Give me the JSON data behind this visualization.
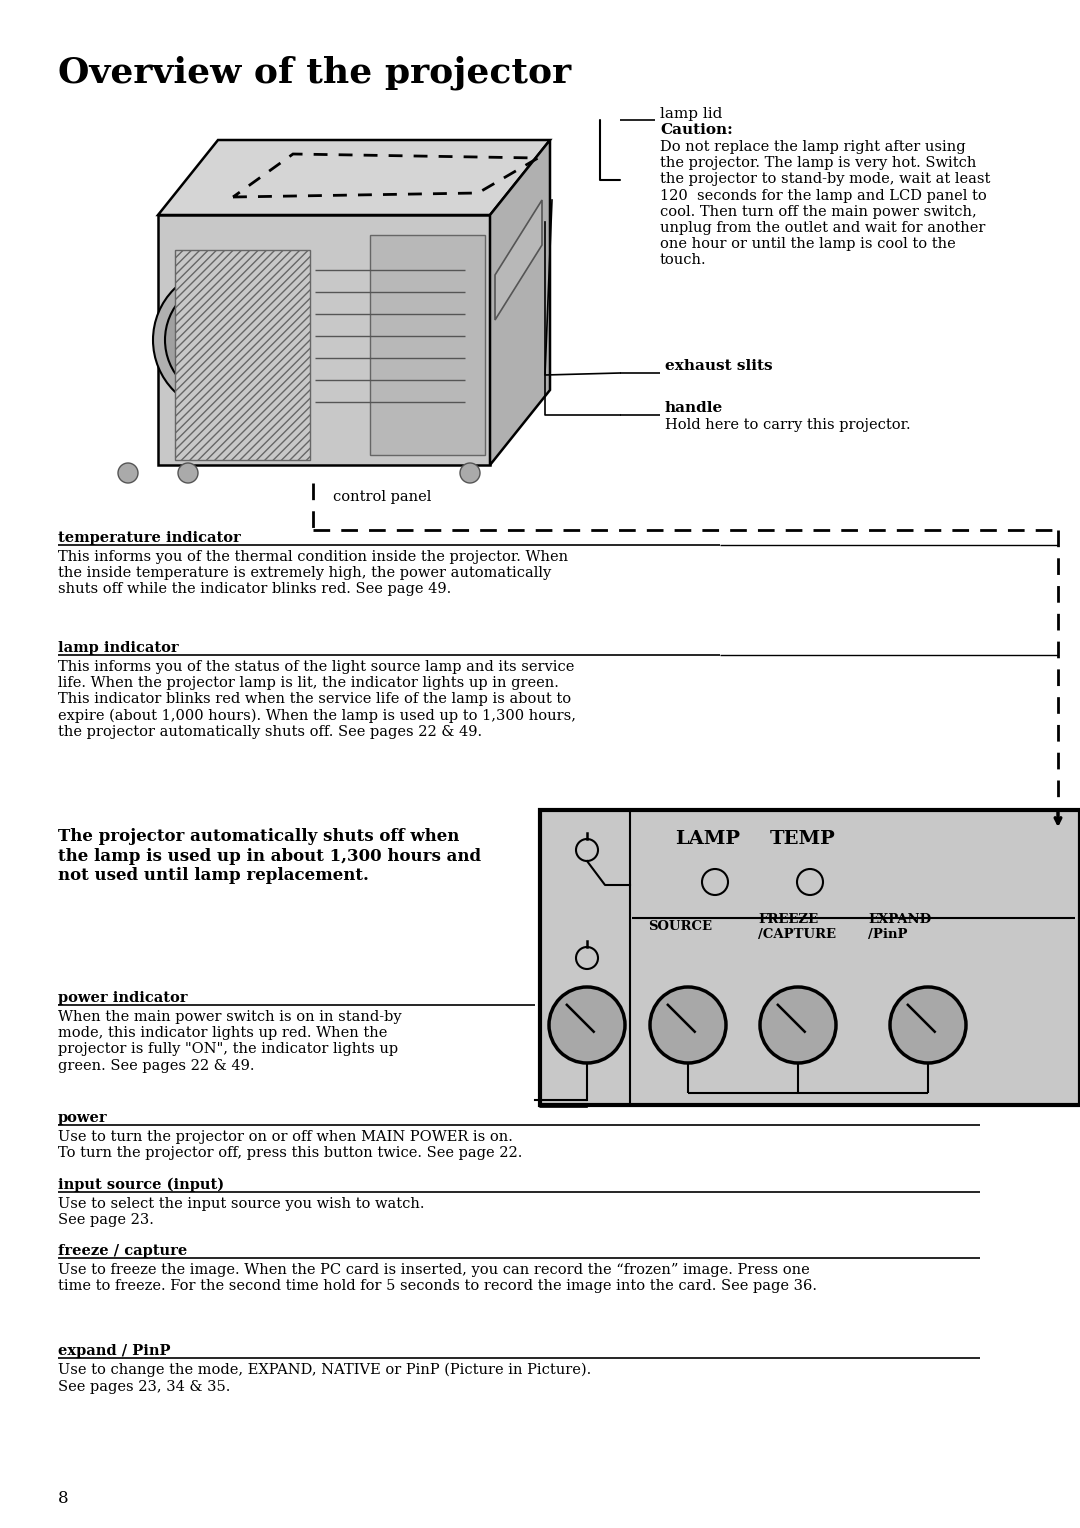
{
  "bg": "#ffffff",
  "fg": "#000000",
  "title": "Overview of the projector",
  "lamp_lid_label": "lamp lid",
  "lamp_lid_caution": "Caution:",
  "lamp_lid_body": "Do not replace the lamp right after using\nthe projector. The lamp is very hot. Switch\nthe projector to stand-by mode, wait at least\n120  seconds for the lamp and LCD panel to\ncool. Then turn off the main power switch,\nunplug from the outlet and wait for another\none hour or until the lamp is cool to the\ntouch.",
  "exhaust_label": "exhaust slits",
  "handle_label": "handle",
  "handle_desc": "Hold here to carry this projector.",
  "ctrl_panel_label": "control panel",
  "temp_title": "temperature indicator",
  "temp_body": "This informs you of the thermal condition inside the projector. When\nthe inside temperature is extremely high, the power automatically\nshuts off while the indicator blinks red. See page 49.",
  "lamp_title": "lamp indicator",
  "lamp_body": "This informs you of the status of the light source lamp and its service\nlife. When the projector lamp is lit, the indicator lights up in green.\nThis indicator blinks red when the service life of the lamp is about to\nexpire (about 1,000 hours). When the lamp is used up to 1,300 hours,\nthe projector automatically shuts off. See pages 22 & 49.",
  "warn_text": "The projector automatically shuts off when\nthe lamp is used up in about 1,300 hours and\nnot used until lamp replacement.",
  "pwr_ind_title": "power indicator",
  "pwr_ind_body": "When the main power switch is on in stand-by\nmode, this indicator lights up red. When the\nprojector is fully \"ON\", the indicator lights up\ngreen. See pages 22 & 49.",
  "power_title": "power",
  "power_body": "Use to turn the projector on or off when MAIN POWER is on.\nTo turn the projector off, press this button twice. See page 22.",
  "input_title": "input source (input)",
  "input_body": "Use to select the input source you wish to watch.\nSee page 23.",
  "freeze_title": "freeze / capture",
  "freeze_body": "Use to freeze the image. When the PC card is inserted, you can record the “frozen” image. Press one\ntime to freeze. For the second time hold for 5 seconds to record the image into the card. See page 36.",
  "expand_title": "expand / PinP",
  "expand_body": "Use to change the mode, EXPAND, NATIVE or PinP (Picture in Picture).\nSee pages 23, 34 & 35.",
  "page_num": "8",
  "proj_body": "#c8c8c8",
  "proj_top": "#d5d5d5",
  "proj_side": "#b0b0b0",
  "panel_bg": "#c8c8c8"
}
